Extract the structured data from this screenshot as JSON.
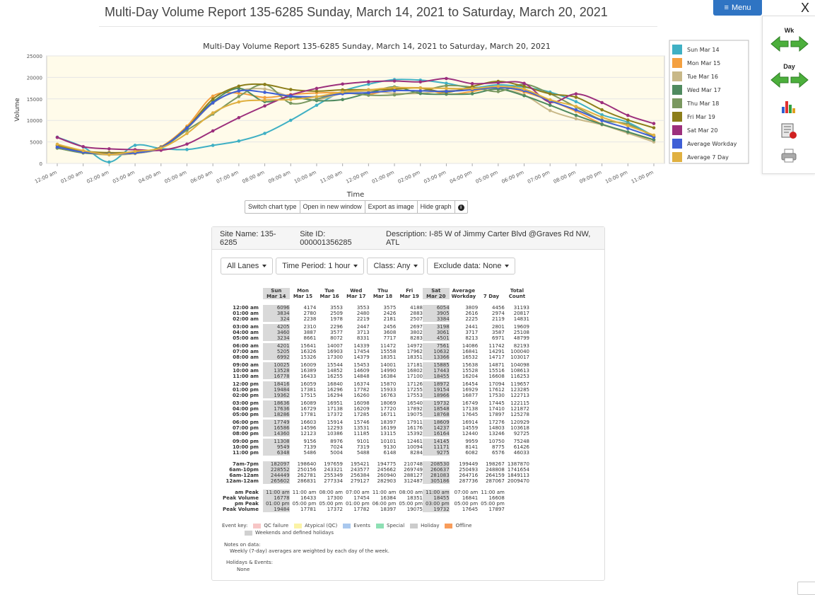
{
  "page": {
    "title": "Multi-Day Volume Report 135-6285 Sunday, March 14, 2021 to Saturday, March 20, 2021"
  },
  "menu": {
    "label": "Menu",
    "close": "X"
  },
  "side": {
    "wk_label": "Wk",
    "day_label": "Day"
  },
  "chart_buttons": [
    "Switch chart type",
    "Open in new window",
    "Export as image",
    "Hide graph"
  ],
  "chart_data": {
    "type": "line",
    "title": "Multi-Day Volume Report 135-6285 Sunday, March 14, 2021 to Saturday, March 20, 2021",
    "xlabel": "Time",
    "ylabel": "Volume",
    "ylim": [
      0,
      25000
    ],
    "yticks": [
      0,
      5000,
      10000,
      15000,
      20000,
      25000
    ],
    "categories": [
      "12:00 am",
      "01:00 am",
      "02:00 am",
      "03:00 am",
      "04:00 am",
      "05:00 am",
      "06:00 am",
      "07:00 am",
      "08:00 am",
      "09:00 am",
      "10:00 am",
      "11:00 am",
      "12:00 pm",
      "01:00 pm",
      "02:00 pm",
      "03:00 pm",
      "04:00 pm",
      "05:00 pm",
      "06:00 pm",
      "07:00 pm",
      "08:00 pm",
      "09:00 pm",
      "10:00 pm",
      "11:00 pm"
    ],
    "grid": true,
    "legend_position": "right",
    "series": [
      {
        "name": "Sun Mar 14",
        "color": "#3fb0c4",
        "values": [
          6096,
          3834,
          324,
          4205,
          3460,
          3234,
          4201,
          5205,
          6992,
          10025,
          13528,
          16778,
          18416,
          19484,
          19362,
          18636,
          17636,
          18286,
          17749,
          16586,
          14360,
          11308,
          9549,
          6348
        ]
      },
      {
        "name": "Mon Mar 15",
        "color": "#f4a040",
        "values": [
          4174,
          2780,
          2238,
          2310,
          3887,
          8661,
          15641,
          16326,
          15326,
          16009,
          16389,
          16433,
          16059,
          17381,
          17515,
          16089,
          16729,
          17781,
          16603,
          14596,
          12123,
          9156,
          7139,
          5486
        ]
      },
      {
        "name": "Tue Mar 16",
        "color": "#c8b888",
        "values": [
          3553,
          2509,
          1978,
          2296,
          3577,
          8072,
          14007,
          16903,
          17300,
          15544,
          14852,
          16255,
          16840,
          16296,
          16294,
          16951,
          17138,
          17372,
          15914,
          12293,
          10386,
          8976,
          7024,
          5004
        ]
      },
      {
        "name": "Wed Mar 17",
        "color": "#4f8a5f",
        "values": [
          3553,
          2480,
          2219,
          2447,
          3713,
          8331,
          14339,
          17454,
          14379,
          15453,
          14609,
          14848,
          16374,
          17782,
          16260,
          16098,
          16209,
          17285,
          15746,
          13531,
          11185,
          9101,
          7319,
          5488
        ]
      },
      {
        "name": "Thu Mar 18",
        "color": "#7a9860",
        "values": [
          3575,
          2426,
          2181,
          2456,
          3608,
          7717,
          11472,
          15558,
          18351,
          14001,
          14990,
          16384,
          15870,
          15933,
          16763,
          18069,
          17720,
          16711,
          18397,
          16199,
          13115,
          10101,
          9130,
          6148
        ]
      },
      {
        "name": "Fri Mar 19",
        "color": "#8c7e1a",
        "values": [
          4188,
          2883,
          2507,
          2697,
          3802,
          8283,
          14972,
          17962,
          18351,
          17181,
          16802,
          17100,
          17126,
          17255,
          17553,
          16540,
          17892,
          19075,
          17911,
          16176,
          15392,
          12461,
          10094,
          8284
        ]
      },
      {
        "name": "Sat Mar 20",
        "color": "#9c2f7c",
        "values": [
          6054,
          3905,
          3384,
          3198,
          3061,
          4501,
          7561,
          10632,
          13366,
          15885,
          17443,
          18455,
          18972,
          19154,
          18966,
          19732,
          18548,
          18768,
          18609,
          14237,
          16164,
          14145,
          11171,
          9275
        ]
      },
      {
        "name": "Average Workday",
        "color": "#3f5fd6",
        "values": [
          3809,
          2616,
          2225,
          2441,
          3717,
          8213,
          14086,
          16841,
          16532,
          15638,
          15528,
          16204,
          16454,
          16929,
          16877,
          16749,
          17138,
          17645,
          16914,
          14559,
          12440,
          9959,
          8141,
          6082
        ]
      },
      {
        "name": "Average 7 Day",
        "color": "#e0b040",
        "values": [
          4456,
          2974,
          2119,
          2801,
          3587,
          6971,
          11742,
          14291,
          14717,
          14871,
          15516,
          16608,
          17094,
          17612,
          17530,
          17445,
          17410,
          17897,
          17276,
          14803,
          13246,
          10750,
          8775,
          6576
        ]
      }
    ]
  },
  "site": {
    "name": "Site Name: 135-6285",
    "id": "Site ID: 000001356285",
    "description": "Description: I-85 W of Jimmy Carter Blvd @Graves Rd NW, ATL"
  },
  "filters": [
    "All Lanes",
    "Time Period: 1 hour",
    "Class: Any",
    "Exclude data: None"
  ],
  "table": {
    "headers": [
      [
        "Sun",
        "Mar 14"
      ],
      [
        "Mon",
        "Mar 15"
      ],
      [
        "Tue",
        "Mar 16"
      ],
      [
        "Wed",
        "Mar 17"
      ],
      [
        "Thu",
        "Mar 18"
      ],
      [
        "Fri",
        "Mar 19"
      ],
      [
        "Sat",
        "Mar 20"
      ],
      [
        "Average",
        "Workday"
      ],
      [
        "",
        "7 Day"
      ],
      [
        "Total",
        "Count"
      ]
    ],
    "hourly": [
      [
        "12:00 am",
        "6096",
        "4174",
        "3553",
        "3553",
        "3575",
        "4188",
        "6054",
        "3809",
        "4456",
        "31193"
      ],
      [
        "01:00 am",
        "3834",
        "2780",
        "2509",
        "2480",
        "2426",
        "2883",
        "3905",
        "2616",
        "2974",
        "20817"
      ],
      [
        "02:00 am",
        "324",
        "2238",
        "1978",
        "2219",
        "2181",
        "2507",
        "3384",
        "2225",
        "2119",
        "14831"
      ],
      [
        "03:00 am",
        "4205",
        "2310",
        "2296",
        "2447",
        "2456",
        "2697",
        "3198",
        "2441",
        "2801",
        "19609"
      ],
      [
        "04:00 am",
        "3460",
        "3887",
        "3577",
        "3713",
        "3608",
        "3802",
        "3061",
        "3717",
        "3587",
        "25108"
      ],
      [
        "05:00 am",
        "3234",
        "8661",
        "8072",
        "8331",
        "7717",
        "8283",
        "4501",
        "8213",
        "6971",
        "48799"
      ],
      [
        "06:00 am",
        "4201",
        "15641",
        "14007",
        "14339",
        "11472",
        "14972",
        "7561",
        "14086",
        "11742",
        "82193"
      ],
      [
        "07:00 am",
        "5205",
        "16326",
        "16903",
        "17454",
        "15558",
        "17962",
        "10632",
        "16841",
        "14291",
        "100040"
      ],
      [
        "08:00 am",
        "6992",
        "15326",
        "17300",
        "14379",
        "18351",
        "18351",
        "13366",
        "16532",
        "14717",
        "103017"
      ],
      [
        "09:00 am",
        "10025",
        "16009",
        "15544",
        "15453",
        "14001",
        "17181",
        "15885",
        "15638",
        "14871",
        "104098"
      ],
      [
        "10:00 am",
        "13528",
        "16389",
        "14852",
        "14609",
        "14990",
        "16802",
        "17443",
        "15528",
        "15516",
        "108613"
      ],
      [
        "11:00 am",
        "16778",
        "16433",
        "16255",
        "14848",
        "16384",
        "17100",
        "18455",
        "16204",
        "16608",
        "116253"
      ],
      [
        "12:00 pm",
        "18416",
        "16059",
        "16840",
        "16374",
        "15870",
        "17126",
        "18972",
        "16454",
        "17094",
        "119657"
      ],
      [
        "01:00 pm",
        "19484",
        "17381",
        "16296",
        "17782",
        "15933",
        "17255",
        "19154",
        "16929",
        "17612",
        "123285"
      ],
      [
        "02:00 pm",
        "19362",
        "17515",
        "16294",
        "16260",
        "16763",
        "17553",
        "18966",
        "16877",
        "17530",
        "122713"
      ],
      [
        "03:00 pm",
        "18636",
        "16089",
        "16951",
        "16098",
        "18069",
        "16540",
        "19732",
        "16749",
        "17445",
        "122115"
      ],
      [
        "04:00 pm",
        "17636",
        "16729",
        "17138",
        "16209",
        "17720",
        "17892",
        "18548",
        "17138",
        "17410",
        "121872"
      ],
      [
        "05:00 pm",
        "18286",
        "17781",
        "17372",
        "17285",
        "16711",
        "19075",
        "18768",
        "17645",
        "17897",
        "125278"
      ],
      [
        "06:00 pm",
        "17749",
        "16603",
        "15914",
        "15746",
        "18397",
        "17911",
        "18609",
        "16914",
        "17276",
        "120929"
      ],
      [
        "07:00 pm",
        "16586",
        "14596",
        "12293",
        "13531",
        "16199",
        "16176",
        "14237",
        "14559",
        "14803",
        "103618"
      ],
      [
        "08:00 pm",
        "14360",
        "12123",
        "10386",
        "11185",
        "13115",
        "15392",
        "16164",
        "12440",
        "13246",
        "92725"
      ],
      [
        "09:00 pm",
        "11308",
        "9156",
        "8976",
        "9101",
        "10101",
        "12461",
        "14145",
        "9959",
        "10750",
        "75248"
      ],
      [
        "10:00 pm",
        "9549",
        "7139",
        "7024",
        "7319",
        "9130",
        "10094",
        "11171",
        "8141",
        "8775",
        "61426"
      ],
      [
        "11:00 pm",
        "6348",
        "5486",
        "5004",
        "5488",
        "6148",
        "8284",
        "9275",
        "6082",
        "6576",
        "46033"
      ]
    ],
    "totals": [
      [
        "7am-7pm",
        "182097",
        "198640",
        "197659",
        "195421",
        "194775",
        "210748",
        "208530",
        "199449",
        "198267",
        "1387870"
      ],
      [
        "6am-10pm",
        "228552",
        "250156",
        "243321",
        "243577",
        "245662",
        "269749",
        "260637",
        "250493",
        "248808",
        "1741654"
      ],
      [
        "6am-12am",
        "244449",
        "262781",
        "255349",
        "256384",
        "260940",
        "288127",
        "281083",
        "264716",
        "264159",
        "1849113"
      ],
      [
        "12am-12am",
        "265602",
        "286831",
        "277334",
        "279127",
        "282903",
        "312487",
        "305186",
        "287736",
        "287067",
        "2009470"
      ]
    ],
    "peaks": [
      [
        "am Peak",
        "11:00 am",
        "11:00 am",
        "08:00 am",
        "07:00 am",
        "11:00 am",
        "08:00 am",
        "11:00 am",
        "07:00 am",
        "11:00 am",
        ""
      ],
      [
        "Peak Volume",
        "16778",
        "16433",
        "17300",
        "17454",
        "16384",
        "18351",
        "18455",
        "16841",
        "16608",
        ""
      ],
      [
        "pm Peak",
        "01:00 pm",
        "05:00 pm",
        "05:00 pm",
        "01:00 pm",
        "06:00 pm",
        "05:00 pm",
        "03:00 pm",
        "05:00 pm",
        "05:00 pm",
        ""
      ],
      [
        "Peak Volume",
        "19484",
        "17781",
        "17372",
        "17782",
        "18397",
        "19075",
        "19732",
        "17645",
        "17897",
        ""
      ]
    ]
  },
  "event_key": {
    "label": "Event key:",
    "items": [
      {
        "label": "QC failure",
        "color": "#f7c6c6"
      },
      {
        "label": "Atypical (QC)",
        "color": "#fbf3a6"
      },
      {
        "label": "Events",
        "color": "#a9c8ee"
      },
      {
        "label": "Special",
        "color": "#8ee0b4"
      },
      {
        "label": "Holiday",
        "color": "#cccccc"
      },
      {
        "label": "Offline",
        "color": "#f89c5a"
      }
    ],
    "weekend": {
      "label": "Weekends and defined holidays",
      "color": "#d0d0d0"
    }
  },
  "notes": {
    "label": "Notes on data:",
    "text": "Weekly (7-day) averages are weighted by each day of the week."
  },
  "holidays": {
    "label": "Holidays & Events:",
    "value": "None"
  }
}
